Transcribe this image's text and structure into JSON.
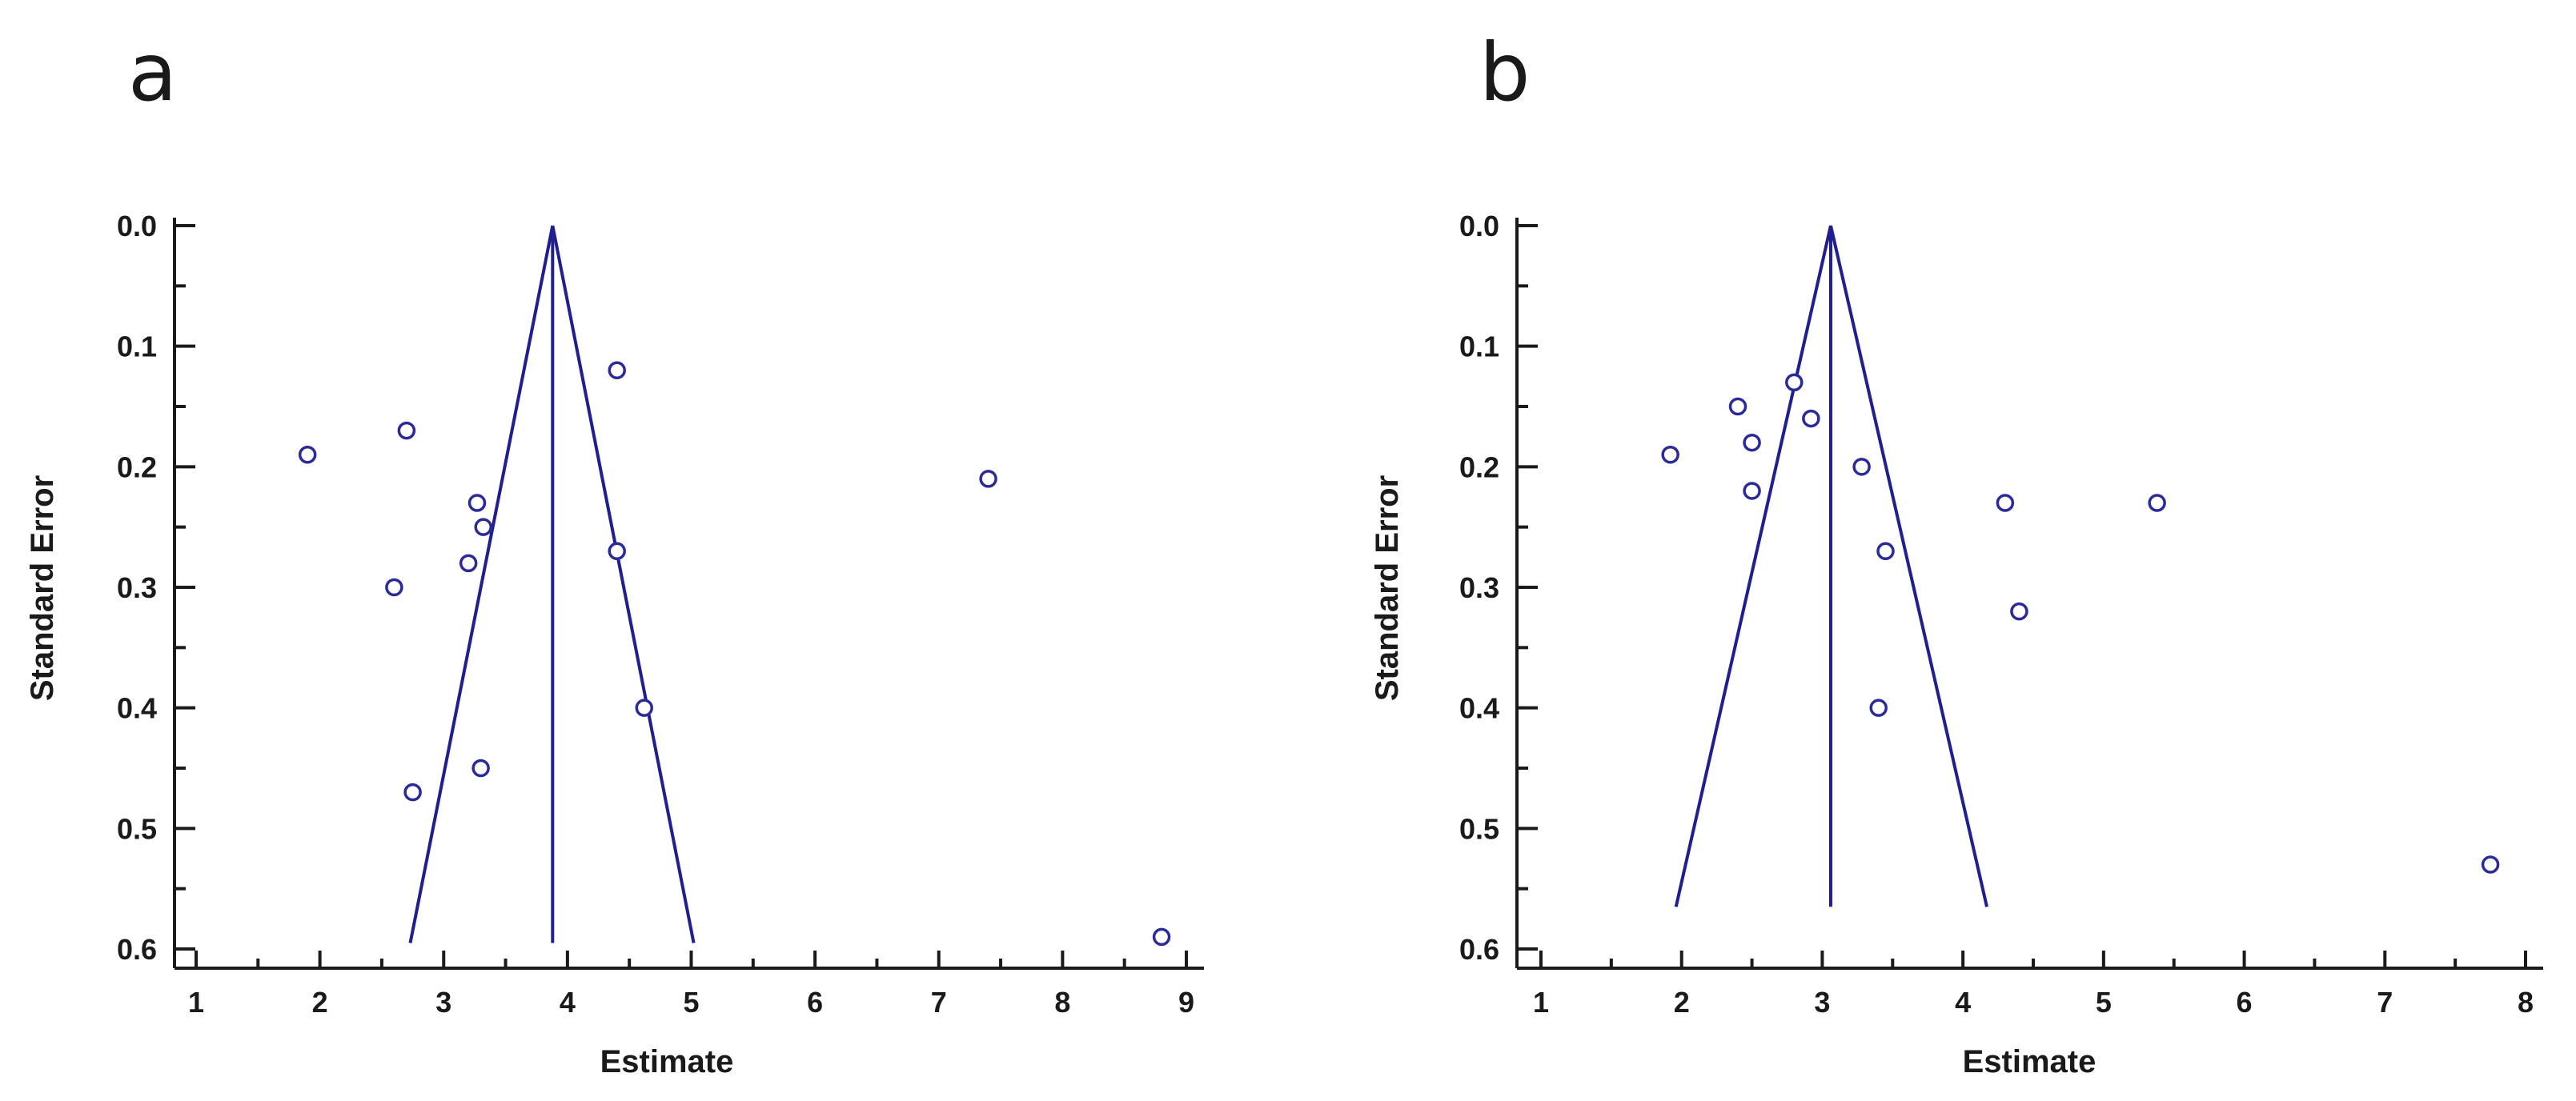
{
  "chart_data": [
    {
      "type": "scatter",
      "subtype": "funnel",
      "panel_label": "a",
      "xlabel": "Estimate",
      "ylabel": "Standard Error",
      "xlim": [
        1,
        9
      ],
      "ylim": [
        0.0,
        0.6
      ],
      "y_inverted": true,
      "xticks": [
        1,
        2,
        3,
        4,
        5,
        6,
        7,
        8,
        9
      ],
      "yticks": [
        "0.0",
        "0.1",
        "0.2",
        "0.3",
        "0.4",
        "0.5",
        "0.6"
      ],
      "pooled_estimate": 3.88,
      "funnel": {
        "apex_se": 0.0,
        "base_se": 0.595,
        "left_x": 2.73,
        "right_x": 5.02
      },
      "points": [
        {
          "x": 4.4,
          "y": 0.12
        },
        {
          "x": 2.7,
          "y": 0.17
        },
        {
          "x": 1.9,
          "y": 0.19
        },
        {
          "x": 7.4,
          "y": 0.21
        },
        {
          "x": 3.27,
          "y": 0.23
        },
        {
          "x": 3.32,
          "y": 0.25
        },
        {
          "x": 4.4,
          "y": 0.27
        },
        {
          "x": 3.2,
          "y": 0.28
        },
        {
          "x": 2.6,
          "y": 0.3
        },
        {
          "x": 4.62,
          "y": 0.4
        },
        {
          "x": 3.3,
          "y": 0.45
        },
        {
          "x": 2.75,
          "y": 0.47
        },
        {
          "x": 8.8,
          "y": 0.59
        }
      ]
    },
    {
      "type": "scatter",
      "subtype": "funnel",
      "panel_label": "b",
      "xlabel": "Estimate",
      "ylabel": "Standard Error",
      "xlim": [
        1,
        8
      ],
      "ylim": [
        0.0,
        0.6
      ],
      "y_inverted": true,
      "xticks": [
        1,
        2,
        3,
        4,
        5,
        6,
        7,
        8
      ],
      "yticks": [
        "0.0",
        "0.1",
        "0.2",
        "0.3",
        "0.4",
        "0.5",
        "0.6"
      ],
      "pooled_estimate": 3.06,
      "funnel": {
        "apex_se": 0.0,
        "base_se": 0.565,
        "left_x": 1.96,
        "right_x": 4.17
      },
      "points": [
        {
          "x": 2.8,
          "y": 0.13
        },
        {
          "x": 2.4,
          "y": 0.15
        },
        {
          "x": 2.92,
          "y": 0.16
        },
        {
          "x": 2.5,
          "y": 0.18
        },
        {
          "x": 1.92,
          "y": 0.19
        },
        {
          "x": 3.28,
          "y": 0.2
        },
        {
          "x": 2.5,
          "y": 0.22
        },
        {
          "x": 4.3,
          "y": 0.23
        },
        {
          "x": 5.38,
          "y": 0.23
        },
        {
          "x": 3.45,
          "y": 0.27
        },
        {
          "x": 4.4,
          "y": 0.32
        },
        {
          "x": 3.4,
          "y": 0.4
        },
        {
          "x": 7.75,
          "y": 0.53
        }
      ]
    }
  ]
}
